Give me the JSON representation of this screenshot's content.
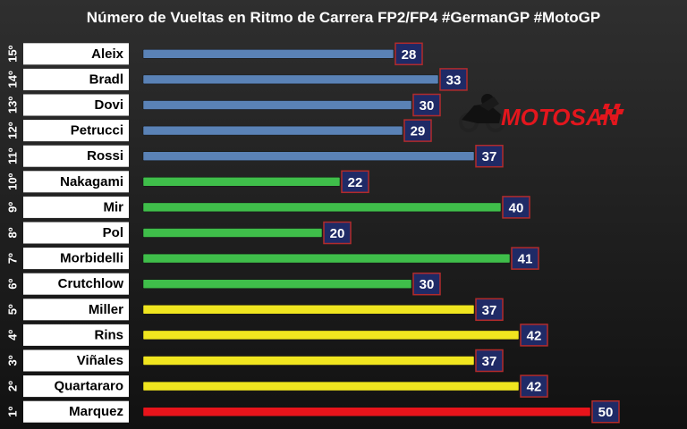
{
  "chart_data": {
    "type": "bar",
    "orientation": "horizontal",
    "title": "Número de Vueltas en Ritmo de Carrera FP2/FP4 #GermanGP #MotoGP",
    "xlim": [
      0,
      52
    ],
    "grid": false,
    "categories": [
      {
        "rank": "15º",
        "name": "Aleix",
        "value": 28,
        "color": "#5a82b6"
      },
      {
        "rank": "14º",
        "name": "Bradl",
        "value": 33,
        "color": "#5a82b6"
      },
      {
        "rank": "13º",
        "name": "Dovi",
        "value": 30,
        "color": "#5a82b6"
      },
      {
        "rank": "12º",
        "name": "Petrucci",
        "value": 29,
        "color": "#5a82b6"
      },
      {
        "rank": "11º",
        "name": "Rossi",
        "value": 37,
        "color": "#5a82b6"
      },
      {
        "rank": "10º",
        "name": "Nakagami",
        "value": 22,
        "color": "#3fbe4a"
      },
      {
        "rank": "9º",
        "name": "Mir",
        "value": 40,
        "color": "#3fbe4a"
      },
      {
        "rank": "8º",
        "name": "Pol",
        "value": 20,
        "color": "#3fbe4a"
      },
      {
        "rank": "7º",
        "name": "Morbidelli",
        "value": 41,
        "color": "#3fbe4a"
      },
      {
        "rank": "6º",
        "name": "Crutchlow",
        "value": 30,
        "color": "#3fbe4a"
      },
      {
        "rank": "5º",
        "name": "Miller",
        "value": 37,
        "color": "#f0e51f"
      },
      {
        "rank": "4º",
        "name": "Rins",
        "value": 42,
        "color": "#f0e51f"
      },
      {
        "rank": "3º",
        "name": "Viñales",
        "value": 37,
        "color": "#f0e51f"
      },
      {
        "rank": "2º",
        "name": "Quartararo",
        "value": 42,
        "color": "#f0e51f"
      },
      {
        "rank": "1º",
        "name": "Marquez",
        "value": 50,
        "color": "#e8141b"
      }
    ]
  },
  "logo": {
    "text": "MOTOSAN",
    "icon": "motorcycle-rider-icon",
    "color": "#e3161d"
  },
  "colors": {
    "background": "#000000",
    "value_box": "#1f2a66",
    "value_box_border": "#b22b2b",
    "label_fill": "#ffffff"
  }
}
